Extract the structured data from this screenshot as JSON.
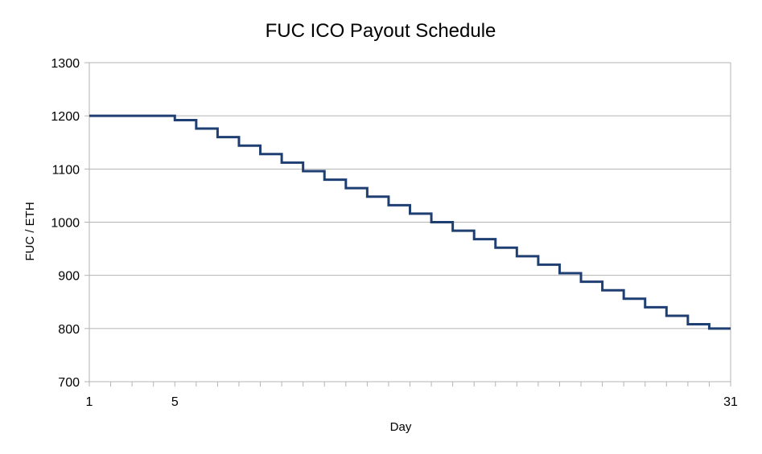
{
  "chart_data": {
    "type": "line",
    "title": "FUC ICO Payout Schedule",
    "xlabel": "Day",
    "ylabel": "FUC / ETH",
    "xlim": [
      1,
      31
    ],
    "ylim": [
      700,
      1300
    ],
    "y_ticks": [
      700,
      800,
      900,
      1000,
      1100,
      1200,
      1300
    ],
    "x_tick_labels": [
      1,
      5,
      31
    ],
    "x_minor_ticks": [
      1,
      2,
      3,
      4,
      5,
      6,
      7,
      8,
      9,
      10,
      11,
      12,
      13,
      14,
      15,
      16,
      17,
      18,
      19,
      20,
      21,
      22,
      23,
      24,
      25,
      26,
      27,
      28,
      29,
      30,
      31
    ],
    "grid": "horizontal",
    "legend": "none",
    "step": "post",
    "series": [
      {
        "color": "#1f3f73",
        "x": [
          1,
          2,
          3,
          4,
          5,
          6,
          7,
          8,
          9,
          10,
          11,
          12,
          13,
          14,
          15,
          16,
          17,
          18,
          19,
          20,
          21,
          22,
          23,
          24,
          25,
          26,
          27,
          28,
          29,
          30,
          31
        ],
        "values": [
          1200,
          1200,
          1200,
          1200,
          1192,
          1176,
          1160,
          1144,
          1128,
          1112,
          1096,
          1080,
          1064,
          1048,
          1032,
          1016,
          1000,
          984,
          968,
          952,
          936,
          920,
          904,
          888,
          872,
          856,
          840,
          824,
          808,
          800,
          800
        ]
      }
    ]
  }
}
